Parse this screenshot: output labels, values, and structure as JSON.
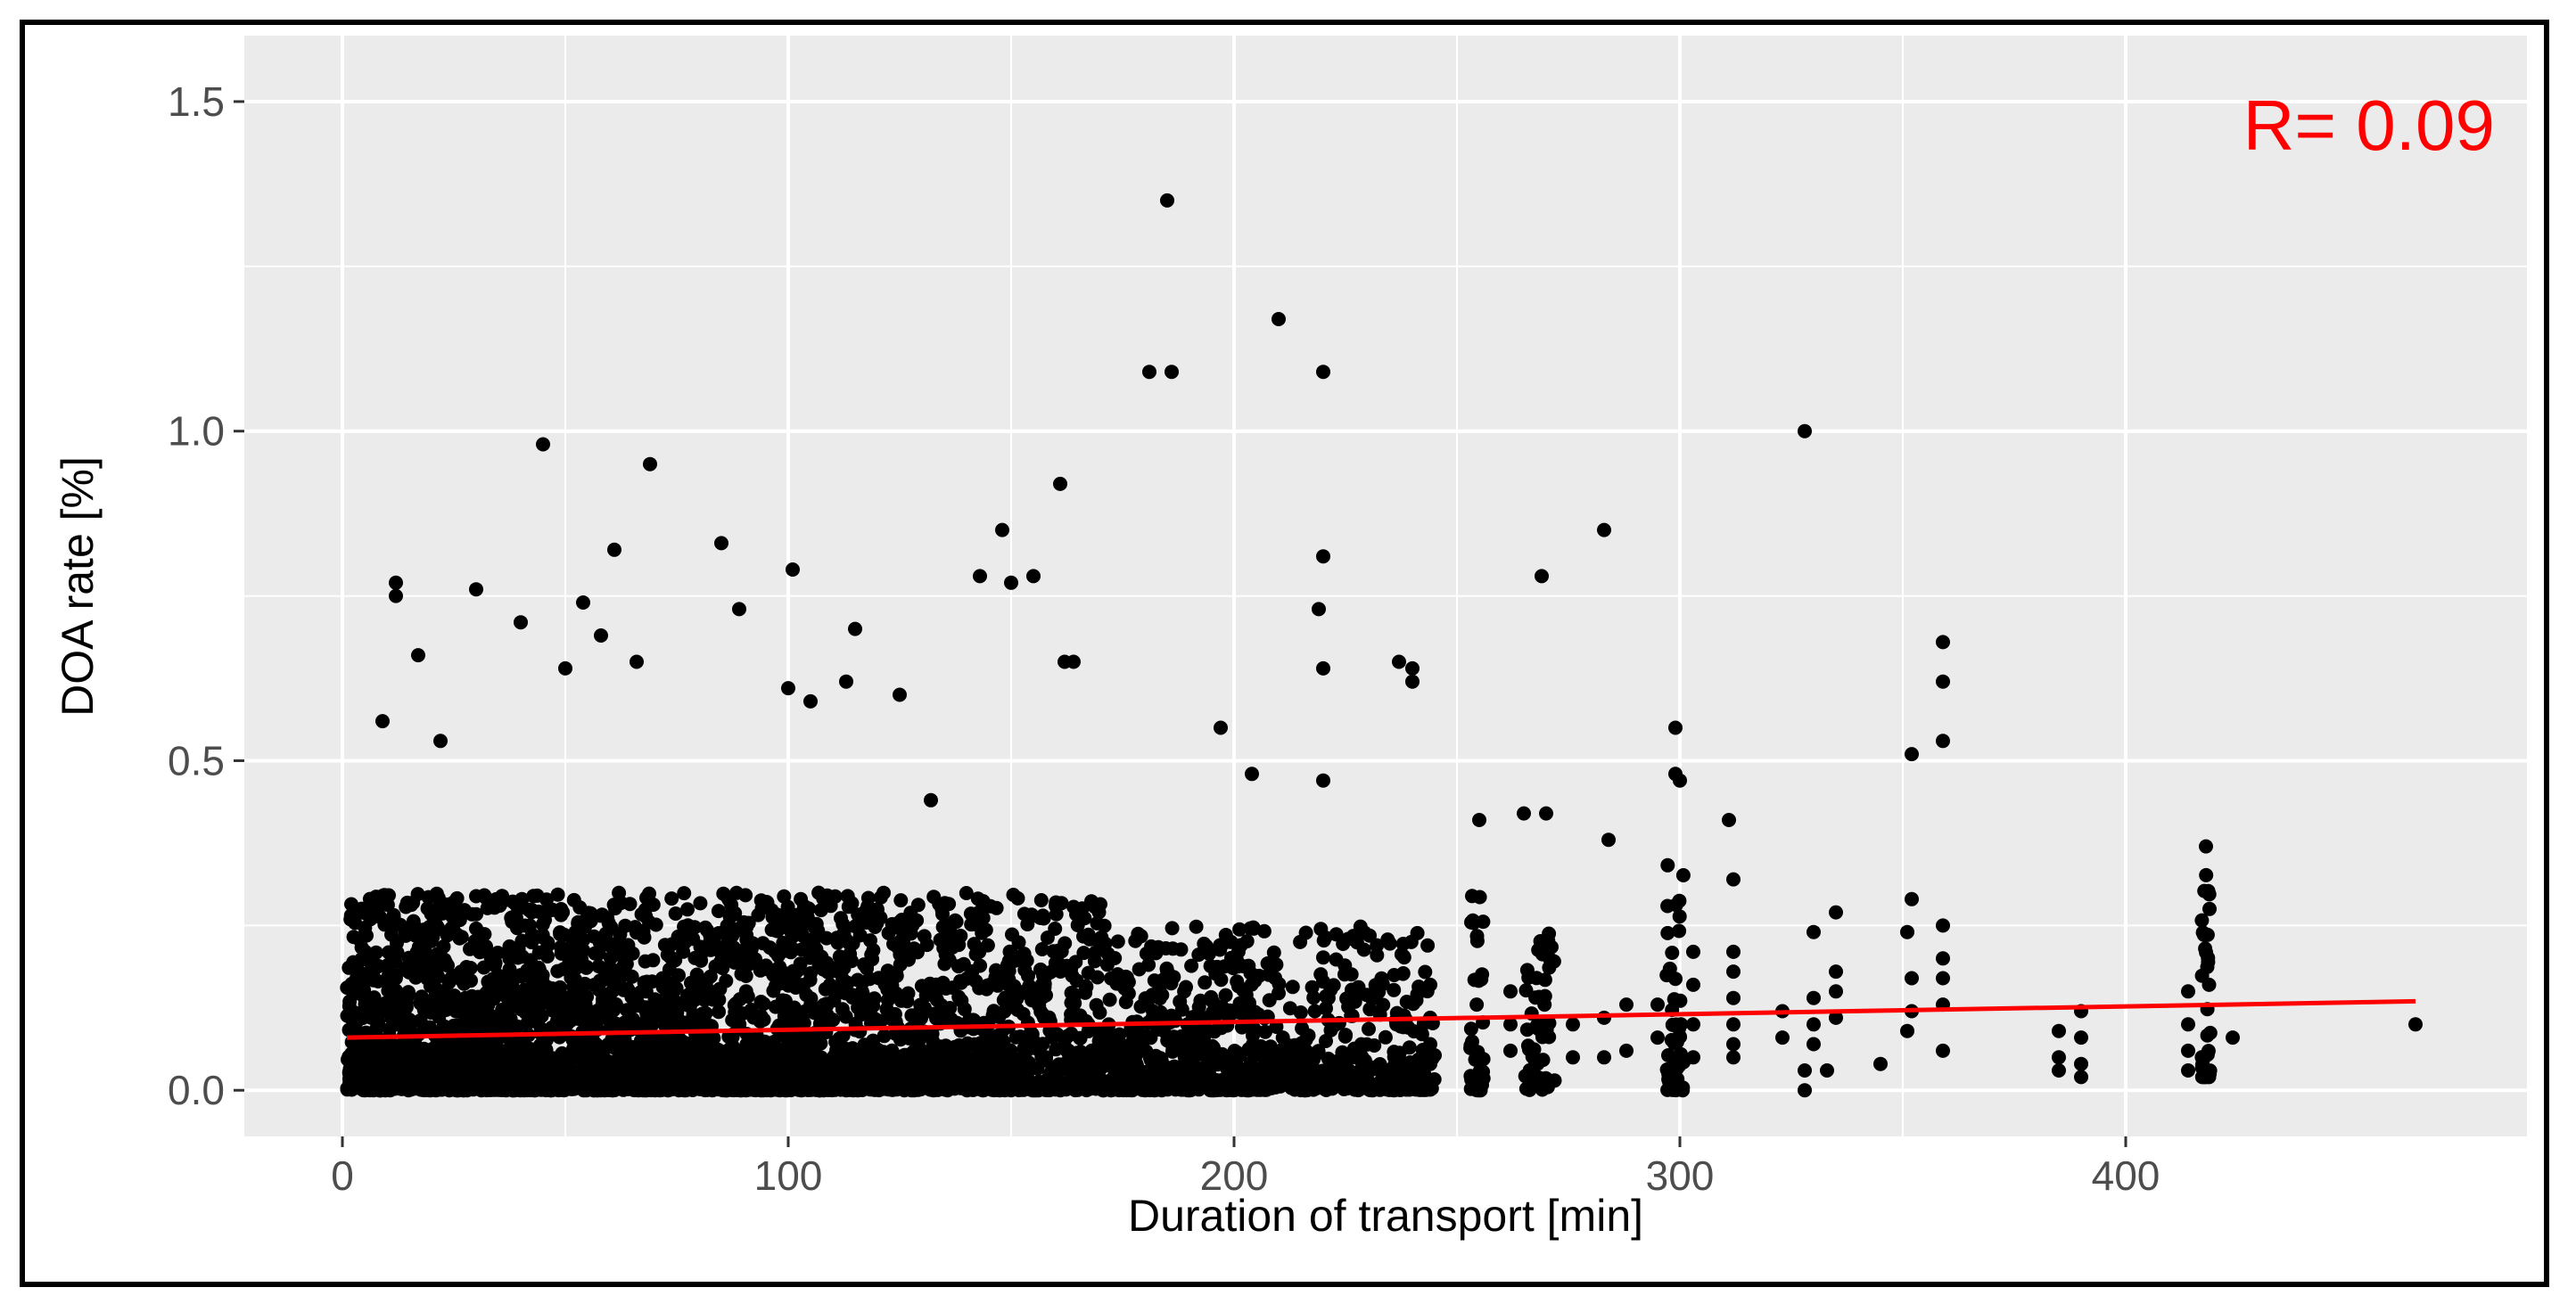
{
  "chart_data": {
    "type": "scatter",
    "xlabel": "Duration of transport [min]",
    "ylabel": "DOA rate [%]",
    "xlim": [
      -22,
      490
    ],
    "ylim": [
      -0.07,
      1.6
    ],
    "x_ticks": [
      0,
      100,
      200,
      300,
      400
    ],
    "x_tick_labels": [
      "0",
      "100",
      "200",
      "300",
      "400"
    ],
    "y_ticks": [
      0.0,
      0.5,
      1.0,
      1.5
    ],
    "y_tick_labels": [
      "0.0",
      "0.5",
      "1.0",
      "1.5"
    ],
    "grid": true,
    "annotation": "R= 0.09",
    "colors": {
      "points": "#000000",
      "trend": "#ff0000",
      "panel": "#ebebeb",
      "grid": "#ffffff",
      "annotation": "#ff0000"
    },
    "trend_line": {
      "x": [
        1,
        465
      ],
      "y": [
        0.08,
        0.135
      ]
    },
    "highlighted_points": [
      {
        "x": 185,
        "y": 1.35
      },
      {
        "x": 210,
        "y": 1.17
      },
      {
        "x": 181,
        "y": 1.09
      },
      {
        "x": 186,
        "y": 1.09
      },
      {
        "x": 220,
        "y": 1.09
      },
      {
        "x": 328,
        "y": 1.0
      },
      {
        "x": 45,
        "y": 0.98
      },
      {
        "x": 69,
        "y": 0.95
      },
      {
        "x": 161,
        "y": 0.92
      },
      {
        "x": 283,
        "y": 0.85
      },
      {
        "x": 148,
        "y": 0.85
      },
      {
        "x": 85,
        "y": 0.83
      },
      {
        "x": 61,
        "y": 0.82
      },
      {
        "x": 220,
        "y": 0.81
      },
      {
        "x": 101,
        "y": 0.79
      },
      {
        "x": 269,
        "y": 0.78
      },
      {
        "x": 143,
        "y": 0.78
      },
      {
        "x": 155,
        "y": 0.78
      },
      {
        "x": 12,
        "y": 0.77
      },
      {
        "x": 150,
        "y": 0.77
      },
      {
        "x": 30,
        "y": 0.76
      },
      {
        "x": 12,
        "y": 0.75
      },
      {
        "x": 54,
        "y": 0.74
      },
      {
        "x": 219,
        "y": 0.73
      },
      {
        "x": 89,
        "y": 0.73
      },
      {
        "x": 40,
        "y": 0.71
      },
      {
        "x": 115,
        "y": 0.7
      },
      {
        "x": 58,
        "y": 0.69
      },
      {
        "x": 359,
        "y": 0.68
      },
      {
        "x": 17,
        "y": 0.66
      },
      {
        "x": 162,
        "y": 0.65
      },
      {
        "x": 164,
        "y": 0.65
      },
      {
        "x": 237,
        "y": 0.65
      },
      {
        "x": 240,
        "y": 0.64
      },
      {
        "x": 220,
        "y": 0.64
      },
      {
        "x": 359,
        "y": 0.62
      },
      {
        "x": 240,
        "y": 0.62
      },
      {
        "x": 50,
        "y": 0.64
      },
      {
        "x": 66,
        "y": 0.65
      },
      {
        "x": 100,
        "y": 0.61
      },
      {
        "x": 113,
        "y": 0.62
      },
      {
        "x": 105,
        "y": 0.59
      },
      {
        "x": 125,
        "y": 0.6
      },
      {
        "x": 299,
        "y": 0.55
      },
      {
        "x": 197,
        "y": 0.55
      },
      {
        "x": 9,
        "y": 0.56
      },
      {
        "x": 359,
        "y": 0.53
      },
      {
        "x": 22,
        "y": 0.53
      },
      {
        "x": 352,
        "y": 0.51
      },
      {
        "x": 299,
        "y": 0.48
      },
      {
        "x": 300,
        "y": 0.47
      },
      {
        "x": 204,
        "y": 0.48
      },
      {
        "x": 220,
        "y": 0.47
      },
      {
        "x": 132,
        "y": 0.44
      },
      {
        "x": 255,
        "y": 0.41
      },
      {
        "x": 265,
        "y": 0.42
      },
      {
        "x": 270,
        "y": 0.42
      },
      {
        "x": 311,
        "y": 0.41
      },
      {
        "x": 284,
        "y": 0.38
      },
      {
        "x": 418,
        "y": 0.37
      },
      {
        "x": 465,
        "y": 0.1
      },
      {
        "x": 390,
        "y": 0.12
      },
      {
        "x": 390,
        "y": 0.08
      },
      {
        "x": 390,
        "y": 0.04
      },
      {
        "x": 390,
        "y": 0.02
      },
      {
        "x": 385,
        "y": 0.09
      },
      {
        "x": 385,
        "y": 0.05
      },
      {
        "x": 385,
        "y": 0.03
      },
      {
        "x": 414,
        "y": 0.15
      },
      {
        "x": 414,
        "y": 0.1
      },
      {
        "x": 414,
        "y": 0.06
      },
      {
        "x": 414,
        "y": 0.03
      },
      {
        "x": 424,
        "y": 0.08
      },
      {
        "x": 345,
        "y": 0.04
      },
      {
        "x": 328,
        "y": 0.03
      },
      {
        "x": 328,
        "y": 0.0
      },
      {
        "x": 352,
        "y": 0.29
      },
      {
        "x": 351,
        "y": 0.24
      },
      {
        "x": 352,
        "y": 0.17
      },
      {
        "x": 352,
        "y": 0.12
      },
      {
        "x": 351,
        "y": 0.09
      },
      {
        "x": 359,
        "y": 0.25
      },
      {
        "x": 359,
        "y": 0.2
      },
      {
        "x": 359,
        "y": 0.17
      },
      {
        "x": 359,
        "y": 0.13
      },
      {
        "x": 359,
        "y": 0.06
      },
      {
        "x": 335,
        "y": 0.27
      },
      {
        "x": 335,
        "y": 0.18
      },
      {
        "x": 335,
        "y": 0.15
      },
      {
        "x": 335,
        "y": 0.11
      },
      {
        "x": 333,
        "y": 0.03
      },
      {
        "x": 330,
        "y": 0.24
      },
      {
        "x": 330,
        "y": 0.14
      },
      {
        "x": 330,
        "y": 0.1
      },
      {
        "x": 330,
        "y": 0.07
      },
      {
        "x": 312,
        "y": 0.32
      },
      {
        "x": 312,
        "y": 0.21
      },
      {
        "x": 312,
        "y": 0.18
      },
      {
        "x": 312,
        "y": 0.14
      },
      {
        "x": 312,
        "y": 0.1
      },
      {
        "x": 312,
        "y": 0.07
      },
      {
        "x": 312,
        "y": 0.05
      },
      {
        "x": 303,
        "y": 0.21
      },
      {
        "x": 303,
        "y": 0.16
      },
      {
        "x": 303,
        "y": 0.1
      },
      {
        "x": 303,
        "y": 0.05
      },
      {
        "x": 323,
        "y": 0.12
      },
      {
        "x": 323,
        "y": 0.08
      },
      {
        "x": 295,
        "y": 0.13
      },
      {
        "x": 295,
        "y": 0.08
      },
      {
        "x": 288,
        "y": 0.13
      },
      {
        "x": 288,
        "y": 0.06
      },
      {
        "x": 283,
        "y": 0.11
      },
      {
        "x": 283,
        "y": 0.05
      },
      {
        "x": 276,
        "y": 0.1
      },
      {
        "x": 276,
        "y": 0.05
      },
      {
        "x": 262,
        "y": 0.15
      },
      {
        "x": 262,
        "y": 0.1
      },
      {
        "x": 262,
        "y": 0.06
      },
      {
        "x": 244,
        "y": 0.16
      },
      {
        "x": 244,
        "y": 0.11
      },
      {
        "x": 244,
        "y": 0.07
      },
      {
        "x": 244,
        "y": 0.04
      }
    ],
    "dense_clusters": [
      {
        "x_range": [
          1,
          45
        ],
        "y_range": [
          0.0,
          0.3
        ],
        "count": 950
      },
      {
        "x_range": [
          45,
          100
        ],
        "y_range": [
          0.0,
          0.3
        ],
        "count": 950
      },
      {
        "x_range": [
          100,
          135
        ],
        "y_range": [
          0.0,
          0.3
        ],
        "count": 500
      },
      {
        "x_range": [
          135,
          170
        ],
        "y_range": [
          0.0,
          0.3
        ],
        "count": 420
      },
      {
        "x_range": [
          170,
          205
        ],
        "y_range": [
          0.0,
          0.25
        ],
        "count": 320
      },
      {
        "x_range": [
          205,
          245
        ],
        "y_range": [
          0.0,
          0.25
        ],
        "count": 260
      },
      {
        "x_range": [
          1,
          245
        ],
        "y_range": [
          0.0,
          0.07
        ],
        "count": 800
      },
      {
        "x_range": [
          253,
          256
        ],
        "y_range": [
          0.0,
          0.3
        ],
        "count": 40
      },
      {
        "x_range": [
          265,
          272
        ],
        "y_range": [
          0.0,
          0.25
        ],
        "count": 55
      },
      {
        "x_range": [
          297,
          301
        ],
        "y_range": [
          0.0,
          0.35
        ],
        "count": 45
      },
      {
        "x_range": [
          417,
          419
        ],
        "y_range": [
          0.02,
          0.36
        ],
        "count": 35
      }
    ]
  }
}
